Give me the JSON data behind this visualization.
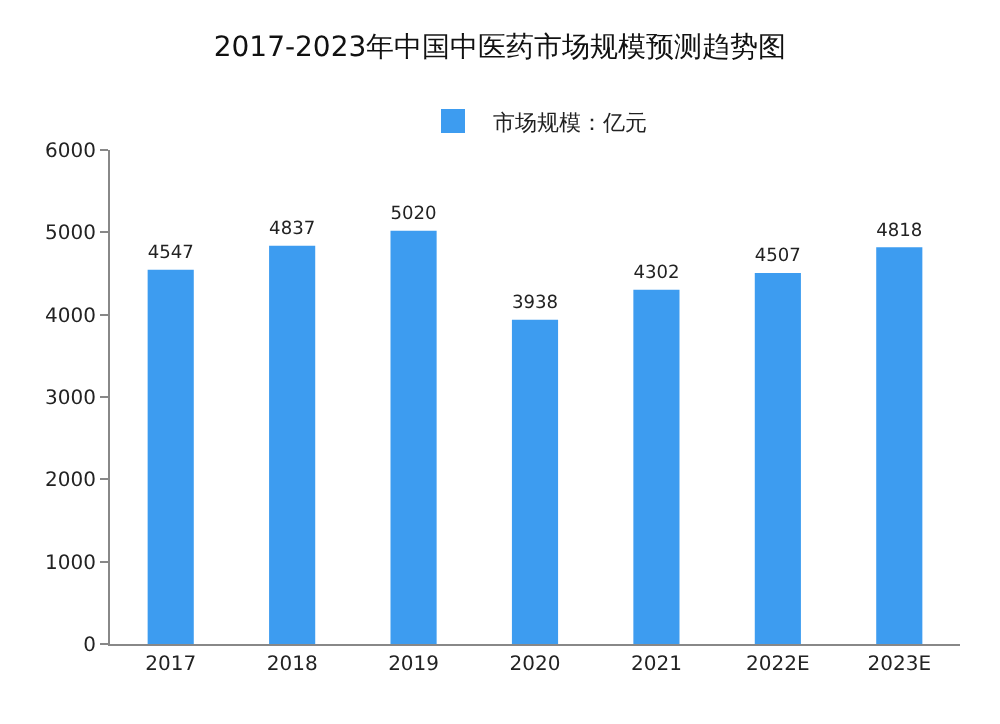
{
  "chart_data": {
    "type": "bar",
    "title": "2017-2023年中国中医药市场规模预测趋势图",
    "categories": [
      "2017",
      "2018",
      "2019",
      "2020",
      "2021",
      "2022E",
      "2023E"
    ],
    "series": [
      {
        "name": "市场规模：亿元",
        "color": "#3d9cf0",
        "values": [
          4547,
          4837,
          5020,
          3938,
          4302,
          4507,
          4818
        ]
      }
    ],
    "ylim": [
      0,
      6000
    ],
    "yticks": [
      0,
      1000,
      2000,
      3000,
      4000,
      5000,
      6000
    ],
    "grid": false,
    "legend": "top",
    "data_labels": true
  }
}
